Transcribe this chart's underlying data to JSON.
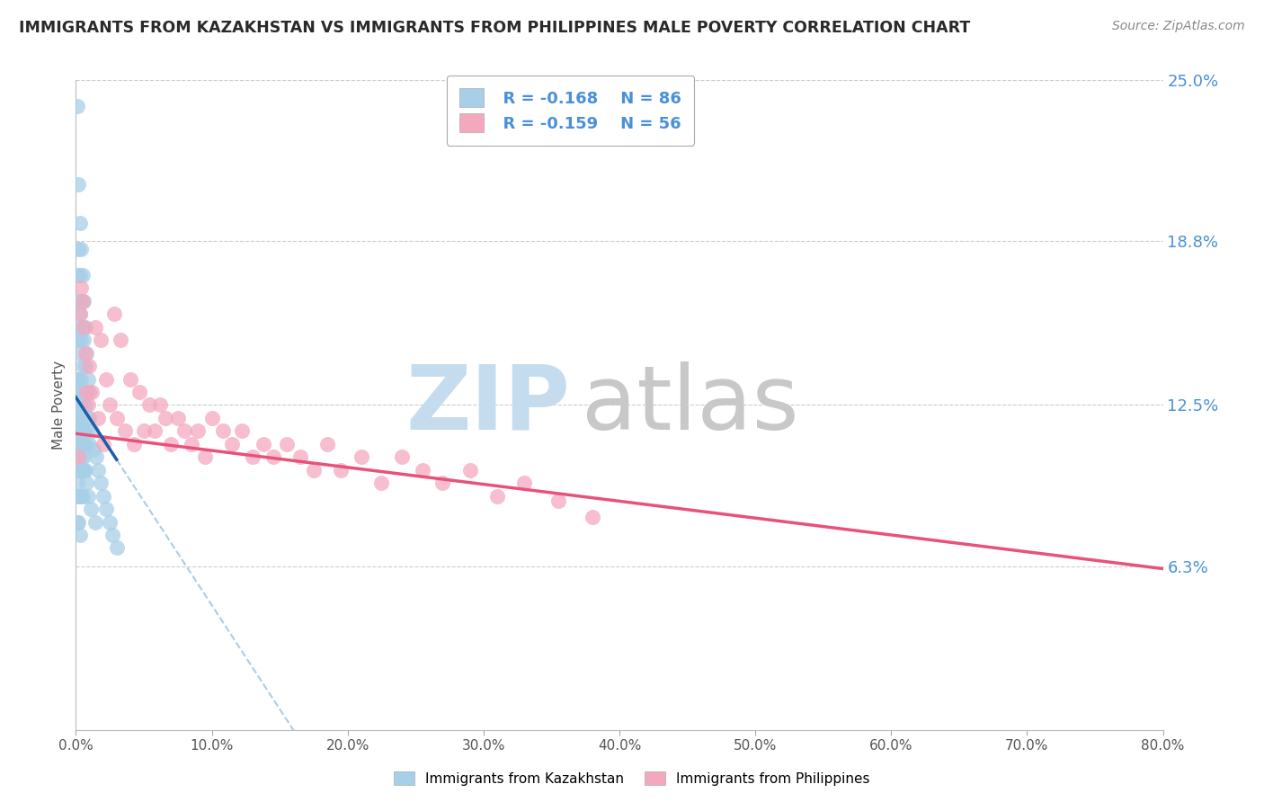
{
  "title": "IMMIGRANTS FROM KAZAKHSTAN VS IMMIGRANTS FROM PHILIPPINES MALE POVERTY CORRELATION CHART",
  "source": "Source: ZipAtlas.com",
  "ylabel": "Male Poverty",
  "legend1_label": "Immigrants from Kazakhstan",
  "legend2_label": "Immigrants from Philippines",
  "legend_r1": "R = -0.168",
  "legend_n1": "N = 86",
  "legend_r2": "R = -0.159",
  "legend_n2": "N = 56",
  "xlim": [
    0.0,
    0.8
  ],
  "ylim": [
    0.0,
    0.25
  ],
  "xtick_labels": [
    "0.0%",
    "10.0%",
    "20.0%",
    "30.0%",
    "40.0%",
    "50.0%",
    "60.0%",
    "70.0%",
    "80.0%"
  ],
  "xtick_vals": [
    0.0,
    0.1,
    0.2,
    0.3,
    0.4,
    0.5,
    0.6,
    0.7,
    0.8
  ],
  "ytick_right_labels": [
    "25.0%",
    "18.8%",
    "12.5%",
    "6.3%"
  ],
  "ytick_right_vals": [
    0.25,
    0.188,
    0.125,
    0.063
  ],
  "color_kaz": "#a8cfe8",
  "color_phil": "#f4a8be",
  "color_kaz_line": "#1a5fa8",
  "color_phil_line": "#e8527a",
  "color_kaz_dashed": "#8ab8d8",
  "kaz_x": [
    0.001,
    0.001,
    0.001,
    0.001,
    0.001,
    0.001,
    0.001,
    0.001,
    0.002,
    0.002,
    0.002,
    0.002,
    0.002,
    0.002,
    0.002,
    0.002,
    0.002,
    0.002,
    0.003,
    0.003,
    0.003,
    0.003,
    0.003,
    0.003,
    0.003,
    0.003,
    0.003,
    0.003,
    0.004,
    0.004,
    0.004,
    0.004,
    0.004,
    0.004,
    0.004,
    0.004,
    0.005,
    0.005,
    0.005,
    0.005,
    0.005,
    0.005,
    0.005,
    0.006,
    0.006,
    0.006,
    0.006,
    0.006,
    0.007,
    0.007,
    0.007,
    0.007,
    0.008,
    0.008,
    0.008,
    0.009,
    0.009,
    0.01,
    0.01,
    0.01,
    0.012,
    0.013,
    0.015,
    0.016,
    0.018,
    0.02,
    0.022,
    0.025,
    0.027,
    0.03,
    0.001,
    0.001,
    0.002,
    0.002,
    0.003,
    0.003,
    0.004,
    0.004,
    0.005,
    0.005,
    0.006,
    0.007,
    0.008,
    0.009,
    0.011,
    0.014
  ],
  "kaz_y": [
    0.24,
    0.175,
    0.155,
    0.135,
    0.12,
    0.11,
    0.095,
    0.08,
    0.21,
    0.185,
    0.165,
    0.15,
    0.135,
    0.12,
    0.11,
    0.1,
    0.09,
    0.08,
    0.195,
    0.175,
    0.16,
    0.145,
    0.13,
    0.12,
    0.11,
    0.1,
    0.09,
    0.075,
    0.185,
    0.165,
    0.15,
    0.135,
    0.12,
    0.11,
    0.1,
    0.09,
    0.175,
    0.155,
    0.14,
    0.125,
    0.115,
    0.1,
    0.09,
    0.165,
    0.15,
    0.13,
    0.115,
    0.1,
    0.155,
    0.14,
    0.125,
    0.11,
    0.145,
    0.13,
    0.115,
    0.135,
    0.12,
    0.13,
    0.12,
    0.11,
    0.115,
    0.108,
    0.105,
    0.1,
    0.095,
    0.09,
    0.085,
    0.08,
    0.075,
    0.07,
    0.135,
    0.125,
    0.13,
    0.115,
    0.125,
    0.11,
    0.115,
    0.105,
    0.11,
    0.1,
    0.105,
    0.1,
    0.095,
    0.09,
    0.085,
    0.08
  ],
  "phil_x": [
    0.002,
    0.003,
    0.004,
    0.005,
    0.006,
    0.007,
    0.008,
    0.009,
    0.01,
    0.012,
    0.014,
    0.016,
    0.018,
    0.02,
    0.022,
    0.025,
    0.028,
    0.03,
    0.033,
    0.036,
    0.04,
    0.043,
    0.047,
    0.05,
    0.054,
    0.058,
    0.062,
    0.066,
    0.07,
    0.075,
    0.08,
    0.085,
    0.09,
    0.095,
    0.1,
    0.108,
    0.115,
    0.122,
    0.13,
    0.138,
    0.145,
    0.155,
    0.165,
    0.175,
    0.185,
    0.195,
    0.21,
    0.225,
    0.24,
    0.255,
    0.27,
    0.29,
    0.31,
    0.33,
    0.355,
    0.38
  ],
  "phil_y": [
    0.105,
    0.16,
    0.17,
    0.165,
    0.155,
    0.145,
    0.13,
    0.125,
    0.14,
    0.13,
    0.155,
    0.12,
    0.15,
    0.11,
    0.135,
    0.125,
    0.16,
    0.12,
    0.15,
    0.115,
    0.135,
    0.11,
    0.13,
    0.115,
    0.125,
    0.115,
    0.125,
    0.12,
    0.11,
    0.12,
    0.115,
    0.11,
    0.115,
    0.105,
    0.12,
    0.115,
    0.11,
    0.115,
    0.105,
    0.11,
    0.105,
    0.11,
    0.105,
    0.1,
    0.11,
    0.1,
    0.105,
    0.095,
    0.105,
    0.1,
    0.095,
    0.1,
    0.09,
    0.095,
    0.088,
    0.082
  ],
  "background_color": "#ffffff",
  "grid_color": "#cccccc",
  "title_color": "#2a2a2a",
  "label_color": "#555555",
  "right_label_color": "#4a90d9",
  "source_color": "#888888",
  "watermark_zip_color": "#c5dcef",
  "watermark_atlas_color": "#c8c8c8"
}
